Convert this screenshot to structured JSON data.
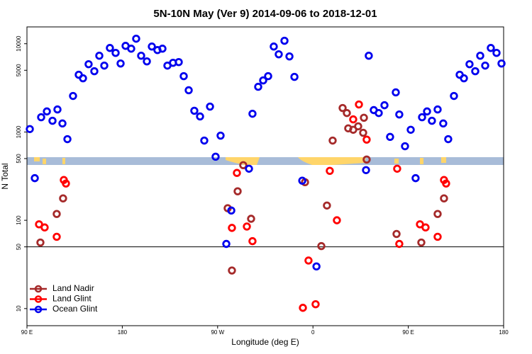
{
  "chart_data": {
    "type": "scatter",
    "title": "5N-10N May (Ver 9)   2014-09-06 to 2018-12-01",
    "x_label": "Longitude (deg E)",
    "y_label": "N Total",
    "log_y": true,
    "legend": "lower left",
    "reference_line": 50,
    "xlim": [
      90,
      540
    ],
    "ylim": [
      6.4,
      15500
    ],
    "xticks": [
      {
        "value": 90,
        "label": "90 E"
      },
      180,
      {
        "value": 270,
        "label": "90 W"
      },
      {
        "value": 360,
        "label": "0"
      },
      {
        "value": 450,
        "label": "90 E"
      },
      {
        "value": 540,
        "label": "180"
      }
    ],
    "yticks": [
      10,
      50,
      100,
      500,
      1000,
      5000,
      10000
    ],
    "series": [
      {
        "name": "Land Nadir",
        "color": "#a52a2a",
        "x": [
          102.7,
          118.1,
          124.1,
          279.5,
          283.5,
          288.9,
          294.2,
          301.6,
          352.5,
          367.9,
          373.2,
          378.6,
          388.0,
          392.0,
          393.3,
          398.0,
          402.7,
          407.4,
          408.1,
          410.7,
          438.9,
          462.3,
          477.7,
          483.7
        ],
        "values": [
          56,
          118,
          177,
          137,
          27,
          213,
          421,
          104,
          270,
          51,
          147,
          800,
          1870,
          1640,
          1100,
          1060,
          1160,
          980,
          1450,
          488,
          70,
          56,
          118,
          177
        ]
      },
      {
        "name": "Land Glint",
        "color": "#ff0000",
        "x": [
          101.4,
          106.7,
          118.1,
          124.8,
          126.8,
          283.5,
          288.2,
          297.6,
          302.9,
          350.5,
          355.8,
          362.5,
          375.9,
          382.6,
          398.0,
          403.4,
          410.7,
          439.5,
          441.5,
          461.0,
          466.3,
          477.7,
          483.7,
          485.7
        ],
        "values": [
          90,
          83,
          65,
          286,
          261,
          82,
          344,
          85,
          58,
          10.2,
          35,
          11.2,
          363,
          100,
          1390,
          2050,
          820,
          384,
          54,
          90,
          83,
          65,
          286,
          261
        ]
      },
      {
        "name": "Ocean Glint",
        "color": "#0000ee",
        "x": [
          92.7,
          97.4,
          103.4,
          108.8,
          114.1,
          118.8,
          123.5,
          128.2,
          133.5,
          138.9,
          142.9,
          148.2,
          153.6,
          158.3,
          163.0,
          168.3,
          173.7,
          178.4,
          183.1,
          188.4,
          193.1,
          197.8,
          203.2,
          207.9,
          213.2,
          217.9,
          222.6,
          227.9,
          233.3,
          238.0,
          242.7,
          248.0,
          253.4,
          257.4,
          262.8,
          268.1,
          272.8,
          278.2,
          282.9,
          299.6,
          302.9,
          308.3,
          313.0,
          317.7,
          323.0,
          327.7,
          333.1,
          337.8,
          342.5,
          349.9,
          363.3,
          410.1,
          412.7,
          417.4,
          422.1,
          427.5,
          432.8,
          438.2,
          441.5,
          446.9,
          452.3,
          456.9,
          463.0,
          467.7,
          472.3,
          477.7,
          483.0,
          487.7,
          493.1,
          498.5,
          502.5,
          507.8,
          513.2,
          517.9,
          522.6,
          527.9,
          533.3,
          538.0
        ],
        "values": [
          1080,
          300,
          1470,
          1710,
          1340,
          1800,
          1250,
          830,
          2560,
          4450,
          4060,
          5860,
          4880,
          7310,
          5650,
          8950,
          7870,
          5970,
          9460,
          8790,
          11400,
          7310,
          6310,
          9290,
          8470,
          8790,
          5650,
          6080,
          6190,
          4290,
          2970,
          1740,
          1500,
          800,
          1940,
          525,
          910,
          54,
          129,
          384,
          1610,
          3250,
          3840,
          4290,
          9290,
          7590,
          10800,
          7180,
          4210,
          281,
          30,
          370,
          7310,
          1770,
          1640,
          2010,
          880,
          2810,
          1580,
          690,
          1060,
          300,
          1470,
          1710,
          1340,
          1800,
          1250,
          830,
          2560,
          4450,
          4060,
          5860,
          4880,
          7310,
          5650,
          8950,
          7870,
          5970
        ]
      }
    ]
  }
}
